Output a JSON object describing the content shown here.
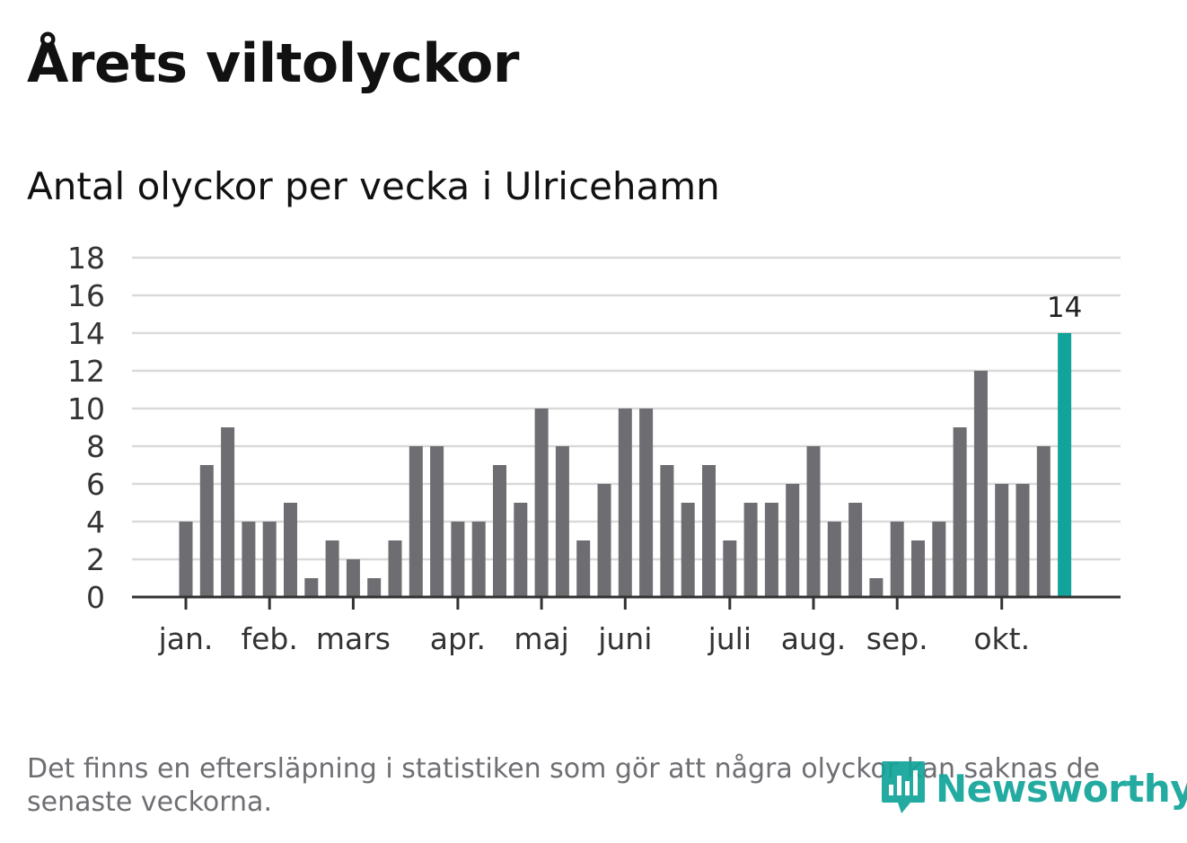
{
  "title": "Årets viltolyckor",
  "subtitle": "Antal olyckor per vecka i Ulricehamn",
  "note": "Det finns en eftersläpning i statistiken som gör att några olyckor kan saknas de senaste veckorna.",
  "logo_text": "Newsworthy",
  "colors": {
    "bar": "#6e6d72",
    "highlight": "#12a49a",
    "grid": "#d9d9d9",
    "axis": "#333333"
  },
  "chart_data": {
    "type": "bar",
    "title": "Antal olyckor per vecka i Ulricehamn",
    "xlabel": "",
    "ylabel": "",
    "ylim": [
      0,
      18
    ],
    "yticks": [
      0,
      2,
      4,
      6,
      8,
      10,
      12,
      14,
      16,
      18
    ],
    "grid": true,
    "month_labels": [
      {
        "label": "jan.",
        "bar_index": 0
      },
      {
        "label": "feb.",
        "bar_index": 4
      },
      {
        "label": "mars",
        "bar_index": 8
      },
      {
        "label": "apr.",
        "bar_index": 13
      },
      {
        "label": "maj",
        "bar_index": 17
      },
      {
        "label": "juni",
        "bar_index": 21
      },
      {
        "label": "juli",
        "bar_index": 26
      },
      {
        "label": "aug.",
        "bar_index": 30
      },
      {
        "label": "sep.",
        "bar_index": 34
      },
      {
        "label": "okt.",
        "bar_index": 39
      }
    ],
    "values": [
      4,
      7,
      9,
      4,
      4,
      5,
      1,
      3,
      2,
      1,
      3,
      8,
      8,
      4,
      4,
      7,
      5,
      10,
      8,
      3,
      6,
      10,
      10,
      7,
      5,
      7,
      3,
      5,
      5,
      6,
      8,
      4,
      5,
      1,
      4,
      3,
      4,
      9,
      12,
      6,
      6,
      8,
      14
    ],
    "highlight_index": 42,
    "highlight_label": "14"
  }
}
